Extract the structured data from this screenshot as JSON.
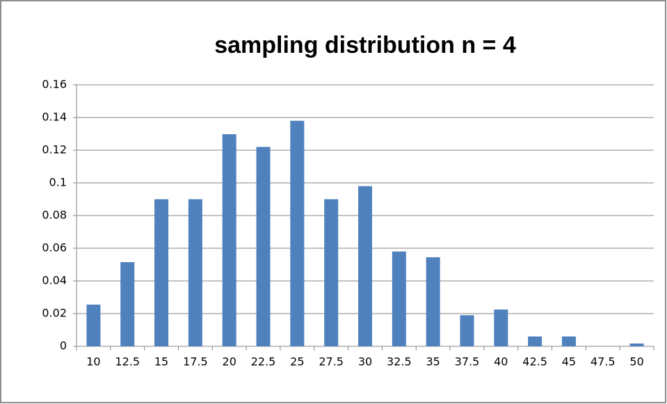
{
  "chart_data": {
    "type": "bar",
    "title": "sampling distribution n = 4",
    "categories": [
      "10",
      "12.5",
      "15",
      "17.5",
      "20",
      "22.5",
      "25",
      "27.5",
      "30",
      "32.5",
      "35",
      "37.5",
      "40",
      "42.5",
      "45",
      "47.5",
      "50"
    ],
    "values": [
      0.0255,
      0.0515,
      0.09,
      0.09,
      0.1298,
      0.122,
      0.138,
      0.09,
      0.098,
      0.058,
      0.0545,
      0.019,
      0.0225,
      0.006,
      0.006,
      0,
      0.0017
    ],
    "color": "#4f81bd",
    "ylim": [
      0,
      0.16
    ],
    "yticks": [
      0,
      0.02,
      0.04,
      0.06,
      0.08,
      0.1,
      0.12,
      0.14,
      0.16
    ],
    "grid": true
  }
}
